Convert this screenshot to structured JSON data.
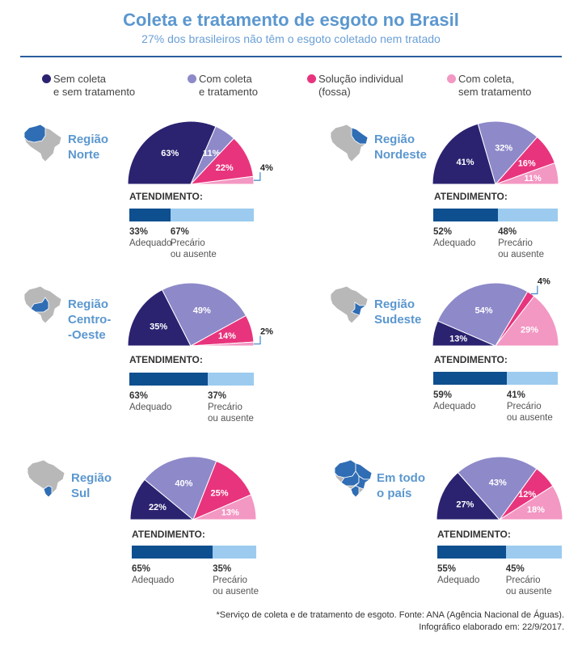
{
  "title": "Coleta e tratamento de esgoto no Brasil",
  "subtitle": "27% dos brasileiros não têm o esgoto coletado nem tratado",
  "colors": {
    "sem_coleta": "#2b2370",
    "com_coleta_tratamento": "#8e89c9",
    "solucao_individual": "#e8347d",
    "com_coleta_sem_tratamento": "#f397c3",
    "adequado": "#0e4f8f",
    "precario": "#9ccbef",
    "accent": "#5b97cf"
  },
  "legend": [
    {
      "label": "Sem coleta\ne sem tratamento",
      "color": "#2b2370"
    },
    {
      "label": "Com coleta\ne tratamento",
      "color": "#8e89c9"
    },
    {
      "label": "Solução individual\n(fossa)",
      "color": "#e8347d"
    },
    {
      "label": "Com coleta,\nsem tratamento",
      "color": "#f397c3"
    }
  ],
  "service_title": "ATENDIMENTO:",
  "chart_data": [
    {
      "type": "pie",
      "title": "Região\nNorte",
      "variant": "half-donut",
      "categories": [
        "Sem coleta e sem tratamento",
        "Com coleta e tratamento",
        "Solução individual (fossa)",
        "Com coleta, sem tratamento"
      ],
      "values": [
        63,
        11,
        22,
        4
      ],
      "value_labels": [
        "63%",
        "11%",
        "22%",
        "4%"
      ],
      "service": {
        "adequado": 33,
        "precario": 67,
        "adequado_pct": "33%",
        "precario_pct": "67%",
        "adequado_label": "Adequado",
        "precario_label": "Precário\nou ausente"
      }
    },
    {
      "type": "pie",
      "title": "Região\nNordeste",
      "variant": "half-donut",
      "categories": [
        "Sem coleta e sem tratamento",
        "Com coleta e tratamento",
        "Solução individual (fossa)",
        "Com coleta, sem tratamento"
      ],
      "values": [
        41,
        32,
        16,
        11
      ],
      "value_labels": [
        "41%",
        "32%",
        "16%",
        "11%"
      ],
      "service": {
        "adequado": 52,
        "precario": 48,
        "adequado_pct": "52%",
        "precario_pct": "48%",
        "adequado_label": "Adequado",
        "precario_label": "Precário\nou ausente"
      }
    },
    {
      "type": "pie",
      "title": "Região\nCentro-\n-Oeste",
      "variant": "half-donut",
      "categories": [
        "Sem coleta e sem tratamento",
        "Com coleta e tratamento",
        "Solução individual (fossa)",
        "Com coleta, sem tratamento"
      ],
      "values": [
        35,
        49,
        14,
        2
      ],
      "value_labels": [
        "35%",
        "49%",
        "14%",
        "2%"
      ],
      "service": {
        "adequado": 63,
        "precario": 37,
        "adequado_pct": "63%",
        "precario_pct": "37%",
        "adequado_label": "Adequado",
        "precario_label": "Precário\nou ausente"
      }
    },
    {
      "type": "pie",
      "title": "Região\nSudeste",
      "variant": "half-donut",
      "categories": [
        "Sem coleta e sem tratamento",
        "Com coleta e tratamento",
        "Solução individual (fossa)",
        "Com coleta, sem tratamento"
      ],
      "values": [
        13,
        54,
        4,
        29
      ],
      "value_labels": [
        "13%",
        "54%",
        "4%",
        "29%"
      ],
      "service": {
        "adequado": 59,
        "precario": 41,
        "adequado_pct": "59%",
        "precario_pct": "41%",
        "adequado_label": "Adequado",
        "precario_label": "Precário\nou ausente"
      }
    },
    {
      "type": "pie",
      "title": "Região\nSul",
      "variant": "half-donut",
      "categories": [
        "Sem coleta e sem tratamento",
        "Com coleta e tratamento",
        "Solução individual (fossa)",
        "Com coleta, sem tratamento"
      ],
      "values": [
        22,
        40,
        25,
        13
      ],
      "value_labels": [
        "22%",
        "40%",
        "25%",
        "13%"
      ],
      "service": {
        "adequado": 65,
        "precario": 35,
        "adequado_pct": "65%",
        "precario_pct": "35%",
        "adequado_label": "Adequado",
        "precario_label": "Precário\nou ausente"
      }
    },
    {
      "type": "pie",
      "title": "Em todo\no país",
      "variant": "half-donut",
      "categories": [
        "Sem coleta e sem tratamento",
        "Com coleta e tratamento",
        "Solução individual (fossa)",
        "Com coleta, sem tratamento"
      ],
      "values": [
        27,
        43,
        12,
        18
      ],
      "value_labels": [
        "27%",
        "43%",
        "12%",
        "18%"
      ],
      "service": {
        "adequado": 55,
        "precario": 45,
        "adequado_pct": "55%",
        "precario_pct": "45%",
        "adequado_label": "Adequado",
        "precario_label": "Precário\nou ausente"
      }
    }
  ],
  "footnote": [
    "*Serviço de coleta e de tratamento de esgoto. Fonte: ANA (Agência Nacional de Águas).",
    "Infográfico elaborado em: 22/9/2017."
  ]
}
